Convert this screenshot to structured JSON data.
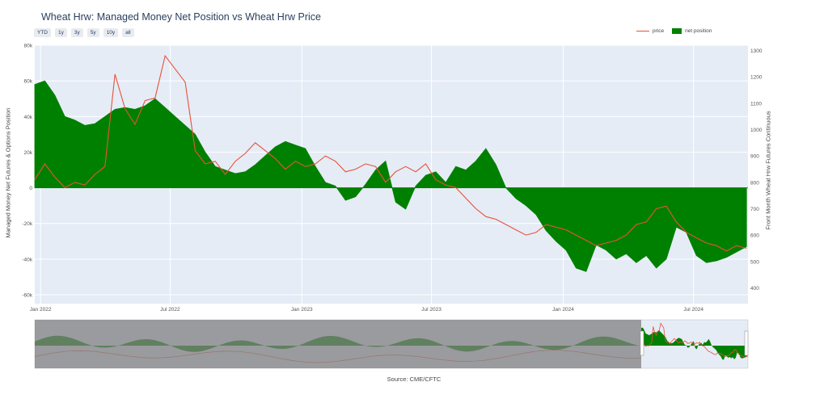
{
  "title": "Wheat Hrw: Managed Money Net Position vs Wheat Hrw Price",
  "range_buttons": [
    "YTD",
    "1y",
    "3y",
    "5y",
    "10y",
    "all"
  ],
  "legend": {
    "price": "price",
    "net": "net position"
  },
  "source": "Source: CME/CFTC",
  "colors": {
    "plot_bg": "#e5ecf6",
    "price": "#e8513a",
    "net": "#008000",
    "selector_mask": "#808080"
  },
  "chart_data": {
    "type": "area",
    "title": "Wheat Hrw: Managed Money Net Position vs Wheat Hrw Price",
    "ylabel": "Managed Money Net Futures & Options Position",
    "y2label": "Front Month Wheat Hrw Futures Continuous",
    "xlim": [
      "2021-12-24",
      "2024-09-15"
    ],
    "ylim": [
      -65000,
      80000
    ],
    "y2lim": [
      340,
      1320
    ],
    "x_ticks": [
      {
        "date": "2022-01-01",
        "label": "Jan 2022"
      },
      {
        "date": "2022-07-01",
        "label": "Jul 2022"
      },
      {
        "date": "2023-01-01",
        "label": "Jan 2023"
      },
      {
        "date": "2023-07-01",
        "label": "Jul 2023"
      },
      {
        "date": "2024-01-01",
        "label": "Jan 2024"
      },
      {
        "date": "2024-07-01",
        "label": "Jul 2024"
      }
    ],
    "y_ticks": [
      {
        "v": 80000,
        "label": "80k"
      },
      {
        "v": 60000,
        "label": "60k"
      },
      {
        "v": 40000,
        "label": "40k"
      },
      {
        "v": 20000,
        "label": "20k"
      },
      {
        "v": 0,
        "label": "0"
      },
      {
        "v": -20000,
        "label": "-20k"
      },
      {
        "v": -40000,
        "label": "-40k"
      },
      {
        "v": -60000,
        "label": "-60k"
      }
    ],
    "y2_ticks": [
      {
        "v": 1300,
        "label": "1300"
      },
      {
        "v": 1200,
        "label": "1200"
      },
      {
        "v": 1100,
        "label": "1100"
      },
      {
        "v": 1000,
        "label": "1000"
      },
      {
        "v": 900,
        "label": "900"
      },
      {
        "v": 800,
        "label": "800"
      },
      {
        "v": 700,
        "label": "700"
      },
      {
        "v": 600,
        "label": "600"
      },
      {
        "v": 500,
        "label": "500"
      },
      {
        "v": 400,
        "label": "400"
      }
    ],
    "series": [
      {
        "name": "net position",
        "axis": "y",
        "points": [
          [
            "2021-12-24",
            58000
          ],
          [
            "2022-01-07",
            60000
          ],
          [
            "2022-01-21",
            52000
          ],
          [
            "2022-02-04",
            40000
          ],
          [
            "2022-02-18",
            38000
          ],
          [
            "2022-03-04",
            35000
          ],
          [
            "2022-03-18",
            36000
          ],
          [
            "2022-04-01",
            40000
          ],
          [
            "2022-04-15",
            44000
          ],
          [
            "2022-04-29",
            45000
          ],
          [
            "2022-05-13",
            44000
          ],
          [
            "2022-05-27",
            46000
          ],
          [
            "2022-06-10",
            50000
          ],
          [
            "2022-06-24",
            45000
          ],
          [
            "2022-07-08",
            40000
          ],
          [
            "2022-07-22",
            35000
          ],
          [
            "2022-08-05",
            30000
          ],
          [
            "2022-08-19",
            20000
          ],
          [
            "2022-09-02",
            12000
          ],
          [
            "2022-09-16",
            10000
          ],
          [
            "2022-09-30",
            8000
          ],
          [
            "2022-10-14",
            9000
          ],
          [
            "2022-10-28",
            13000
          ],
          [
            "2022-11-11",
            18000
          ],
          [
            "2022-11-25",
            23000
          ],
          [
            "2022-12-09",
            26000
          ],
          [
            "2022-12-23",
            24000
          ],
          [
            "2023-01-06",
            22000
          ],
          [
            "2023-01-20",
            12000
          ],
          [
            "2023-02-03",
            3000
          ],
          [
            "2023-02-17",
            1000
          ],
          [
            "2023-03-03",
            -7000
          ],
          [
            "2023-03-17",
            -5000
          ],
          [
            "2023-03-31",
            2000
          ],
          [
            "2023-04-14",
            10000
          ],
          [
            "2023-04-28",
            15000
          ],
          [
            "2023-05-12",
            -8000
          ],
          [
            "2023-05-26",
            -12000
          ],
          [
            "2023-06-09",
            1000
          ],
          [
            "2023-06-23",
            7000
          ],
          [
            "2023-07-07",
            9000
          ],
          [
            "2023-07-21",
            3000
          ],
          [
            "2023-08-04",
            12000
          ],
          [
            "2023-08-18",
            10000
          ],
          [
            "2023-09-01",
            15000
          ],
          [
            "2023-09-15",
            22000
          ],
          [
            "2023-09-29",
            13000
          ],
          [
            "2023-10-13",
            0
          ],
          [
            "2023-10-27",
            -6000
          ],
          [
            "2023-11-10",
            -10000
          ],
          [
            "2023-11-24",
            -15000
          ],
          [
            "2023-12-08",
            -24000
          ],
          [
            "2023-12-22",
            -30000
          ],
          [
            "2024-01-05",
            -35000
          ],
          [
            "2024-01-19",
            -45000
          ],
          [
            "2024-02-02",
            -47000
          ],
          [
            "2024-02-16",
            -32000
          ],
          [
            "2024-03-01",
            -35000
          ],
          [
            "2024-03-15",
            -40000
          ],
          [
            "2024-03-29",
            -37000
          ],
          [
            "2024-04-12",
            -42000
          ],
          [
            "2024-04-26",
            -38000
          ],
          [
            "2024-05-10",
            -45000
          ],
          [
            "2024-05-24",
            -40000
          ],
          [
            "2024-06-07",
            -22000
          ],
          [
            "2024-06-21",
            -25000
          ],
          [
            "2024-07-05",
            -38000
          ],
          [
            "2024-07-19",
            -42000
          ],
          [
            "2024-08-02",
            -41000
          ],
          [
            "2024-08-16",
            -39000
          ],
          [
            "2024-08-30",
            -36000
          ],
          [
            "2024-09-13",
            -33000
          ]
        ]
      },
      {
        "name": "price",
        "axis": "y2",
        "points": [
          [
            "2021-12-24",
            810
          ],
          [
            "2022-01-07",
            870
          ],
          [
            "2022-01-21",
            820
          ],
          [
            "2022-02-04",
            780
          ],
          [
            "2022-02-18",
            800
          ],
          [
            "2022-03-04",
            790
          ],
          [
            "2022-03-18",
            830
          ],
          [
            "2022-04-01",
            860
          ],
          [
            "2022-04-15",
            1210
          ],
          [
            "2022-04-29",
            1080
          ],
          [
            "2022-05-13",
            1020
          ],
          [
            "2022-05-27",
            1110
          ],
          [
            "2022-06-10",
            1120
          ],
          [
            "2022-06-24",
            1280
          ],
          [
            "2022-07-08",
            1230
          ],
          [
            "2022-07-22",
            1180
          ],
          [
            "2022-08-05",
            920
          ],
          [
            "2022-08-19",
            870
          ],
          [
            "2022-09-02",
            880
          ],
          [
            "2022-09-16",
            830
          ],
          [
            "2022-09-30",
            880
          ],
          [
            "2022-10-14",
            910
          ],
          [
            "2022-10-28",
            950
          ],
          [
            "2022-11-11",
            920
          ],
          [
            "2022-11-25",
            890
          ],
          [
            "2022-12-09",
            850
          ],
          [
            "2022-12-23",
            880
          ],
          [
            "2023-01-06",
            860
          ],
          [
            "2023-01-20",
            870
          ],
          [
            "2023-02-03",
            900
          ],
          [
            "2023-02-17",
            880
          ],
          [
            "2023-03-03",
            840
          ],
          [
            "2023-03-17",
            850
          ],
          [
            "2023-03-31",
            870
          ],
          [
            "2023-04-14",
            860
          ],
          [
            "2023-04-28",
            800
          ],
          [
            "2023-05-12",
            840
          ],
          [
            "2023-05-26",
            860
          ],
          [
            "2023-06-09",
            840
          ],
          [
            "2023-06-23",
            870
          ],
          [
            "2023-07-07",
            810
          ],
          [
            "2023-07-21",
            790
          ],
          [
            "2023-08-04",
            780
          ],
          [
            "2023-08-18",
            740
          ],
          [
            "2023-09-01",
            700
          ],
          [
            "2023-09-15",
            670
          ],
          [
            "2023-09-29",
            660
          ],
          [
            "2023-10-13",
            640
          ],
          [
            "2023-10-27",
            620
          ],
          [
            "2023-11-10",
            600
          ],
          [
            "2023-11-24",
            610
          ],
          [
            "2023-12-08",
            640
          ],
          [
            "2023-12-22",
            630
          ],
          [
            "2024-01-05",
            620
          ],
          [
            "2024-01-19",
            600
          ],
          [
            "2024-02-02",
            580
          ],
          [
            "2024-02-16",
            560
          ],
          [
            "2024-03-01",
            570
          ],
          [
            "2024-03-15",
            580
          ],
          [
            "2024-03-29",
            600
          ],
          [
            "2024-04-12",
            640
          ],
          [
            "2024-04-26",
            650
          ],
          [
            "2024-05-10",
            700
          ],
          [
            "2024-05-24",
            710
          ],
          [
            "2024-06-07",
            650
          ],
          [
            "2024-06-21",
            610
          ],
          [
            "2024-07-05",
            590
          ],
          [
            "2024-07-19",
            570
          ],
          [
            "2024-08-02",
            560
          ],
          [
            "2024-08-16",
            540
          ],
          [
            "2024-08-30",
            560
          ],
          [
            "2024-09-13",
            550
          ]
        ]
      }
    ],
    "range_selector": {
      "window_start": "2021-12-24",
      "window_end": "2024-09-15",
      "full_span_years": 10.4
    }
  }
}
